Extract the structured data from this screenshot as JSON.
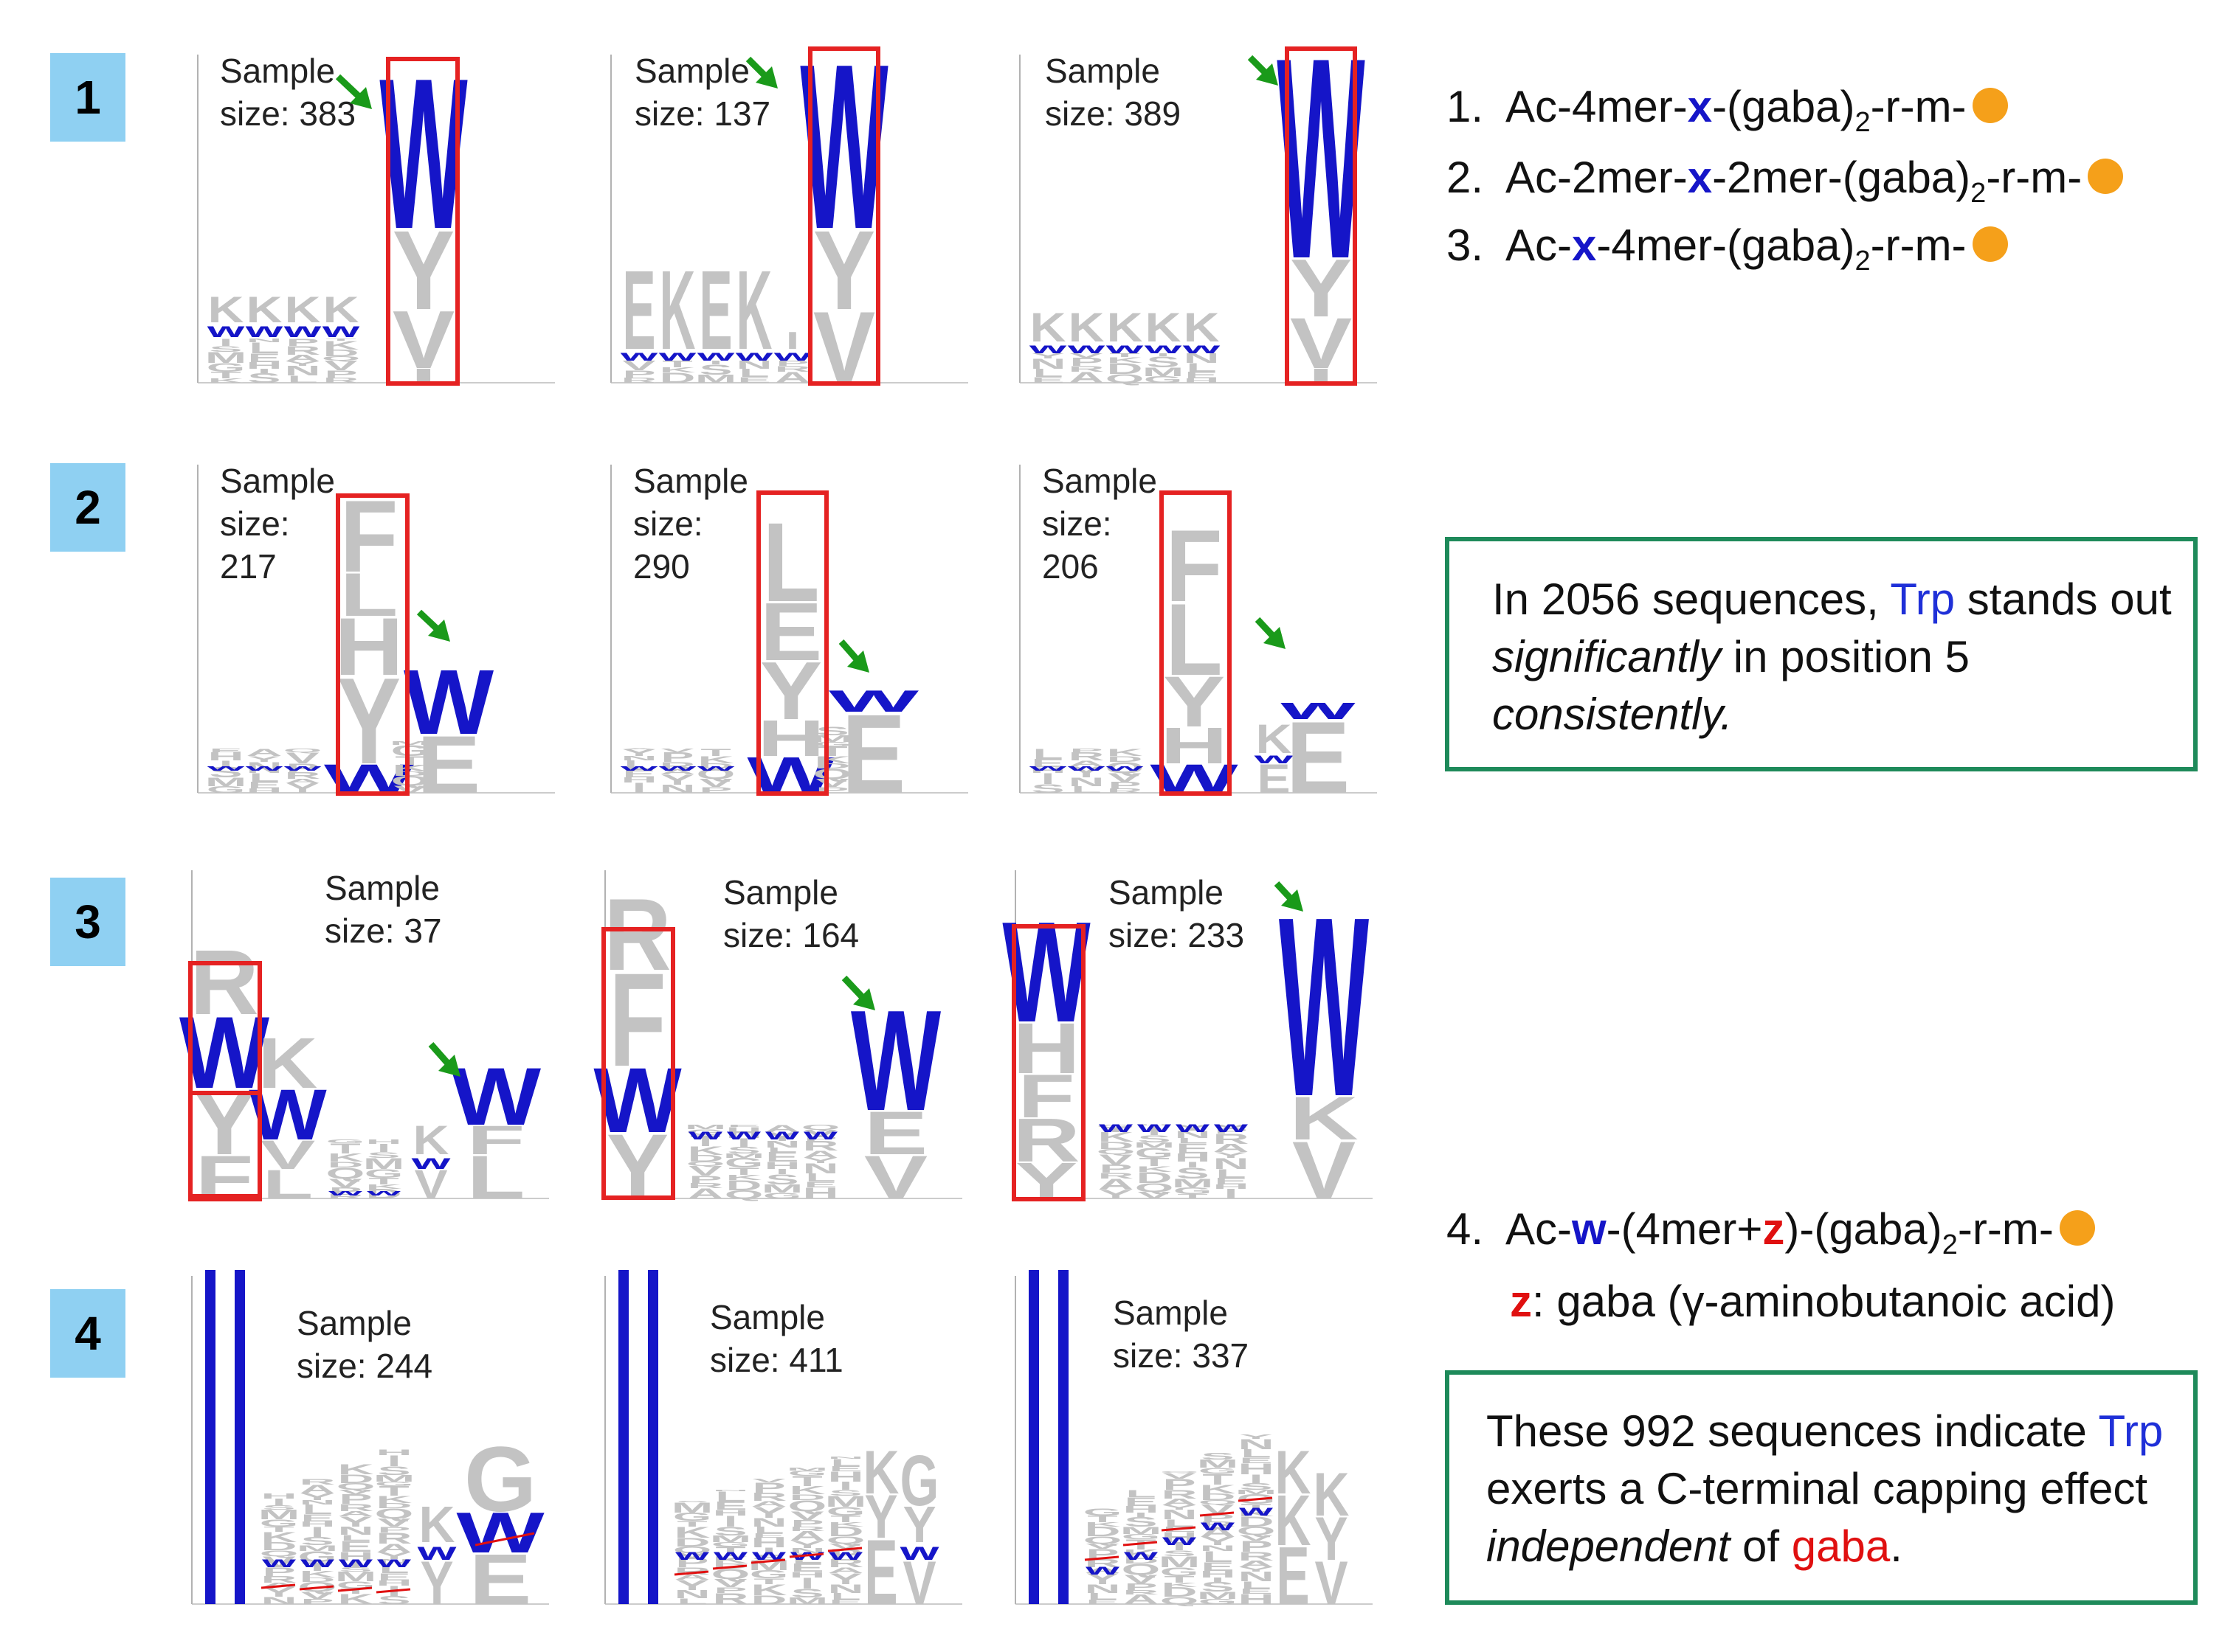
{
  "colors": {
    "accent_blue": "#1515c8",
    "red": "#e01010",
    "box_red": "#e52222",
    "arrow_green": "#1a9a1a",
    "grey": "#c3c3c3",
    "tag_blue": "#8fd0f2",
    "note_border": "#1e8a5a",
    "dot_orange": "#f5a01a"
  },
  "rows": [
    {
      "label": "1",
      "logos": [
        {
          "sample_label": "Sample",
          "sample_size": "size: 383"
        },
        {
          "sample_label": "Sample",
          "sample_size": "size: 137"
        },
        {
          "sample_label": "Sample",
          "sample_size": "size: 389"
        }
      ]
    },
    {
      "label": "2",
      "logos": [
        {
          "sample_label": "Sample",
          "sample_size": "size:",
          "sample_n": "217"
        },
        {
          "sample_label": "Sample",
          "sample_size": "size:",
          "sample_n": "290"
        },
        {
          "sample_label": "Sample",
          "sample_size": "size:",
          "sample_n": "206"
        }
      ]
    },
    {
      "label": "3",
      "logos": [
        {
          "sample_label": "Sample",
          "sample_size": "size: 37"
        },
        {
          "sample_label": "Sample",
          "sample_size": "size: 164"
        },
        {
          "sample_label": "Sample",
          "sample_size": "size: 233"
        }
      ]
    },
    {
      "label": "4",
      "logos": [
        {
          "sample_label": "Sample",
          "sample_size": "size: 244"
        },
        {
          "sample_label": "Sample",
          "sample_size": "size: 411"
        },
        {
          "sample_label": "Sample",
          "sample_size": "size: 337"
        }
      ]
    }
  ],
  "formulas": {
    "f1": {
      "num": "1.",
      "a": "Ac-4mer-",
      "x": "x",
      "b": "-(gaba)",
      "sub": "2",
      "c": "-r-m-"
    },
    "f2": {
      "num": "2.",
      "a": "Ac-2mer-",
      "x": "x",
      "b": "-2mer-(gaba)",
      "sub": "2",
      "c": "-r-m-"
    },
    "f3": {
      "num": "3.",
      "a": "Ac-",
      "x": "x",
      "b": "-4mer-(gaba)",
      "sub": "2",
      "c": "-r-m-"
    },
    "f4": {
      "num": "4.",
      "a": "Ac-",
      "x": "w",
      "b": "-(4mer+",
      "z": "z",
      "b2": ")-(gaba)",
      "sub": "2",
      "c": "-r-m-"
    }
  },
  "z_definition": {
    "z": "z",
    "text": ": gaba (γ-aminobutanoic acid)"
  },
  "note1": {
    "p1": "In 2056 sequences, ",
    "trp": "Trp",
    "p2": " stands out ",
    "em1": "significantly",
    "p3": " in position 5 ",
    "em2": "consistently."
  },
  "note2": {
    "p1": "These 992 sequences indicate ",
    "trp": "Trp",
    "p2": " exerts a C-terminal capping effect ",
    "em": "independent",
    "p3": " of ",
    "gaba": "gaba",
    "p4": "."
  }
}
